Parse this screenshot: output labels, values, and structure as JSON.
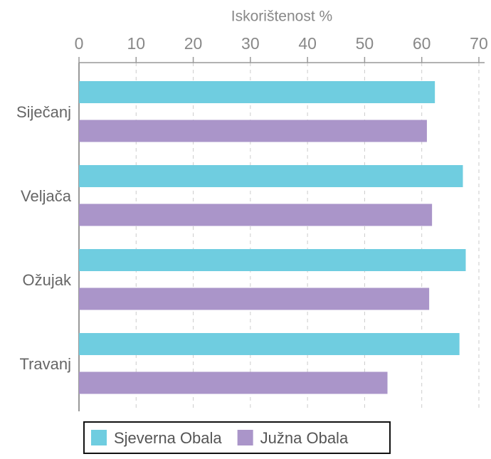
{
  "chart_data": {
    "type": "bar",
    "orientation": "horizontal",
    "xlabel": "Iskorištenost %",
    "categories": [
      "Siječanj",
      "Veljača",
      "Ožujak",
      "Travanj"
    ],
    "series": [
      {
        "name": "Sjeverna Obala",
        "color": "#6fcde0",
        "values": [
          62.3,
          67.2,
          67.7,
          66.6
        ]
      },
      {
        "name": "Južna Obala",
        "color": "#aa95c9",
        "values": [
          60.9,
          61.8,
          61.3,
          54.0
        ]
      }
    ],
    "xlim": [
      0,
      71
    ],
    "xticks": [
      0,
      10,
      20,
      30,
      40,
      50,
      60,
      70
    ],
    "grid": true,
    "legend": "bottom"
  }
}
